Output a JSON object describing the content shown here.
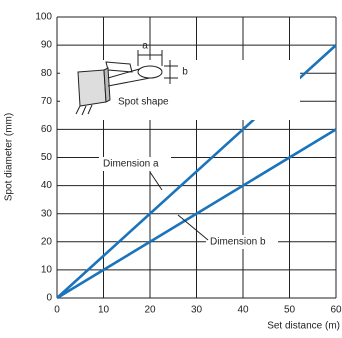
{
  "chart_data": {
    "type": "line",
    "x_label": "Set distance (m)",
    "y_label": "Spot diameter (mm)",
    "x": [
      0,
      60
    ],
    "series": [
      {
        "name": "Dimension a",
        "color": "#1b74bb",
        "values": [
          0,
          90
        ]
      },
      {
        "name": "Dimension b",
        "color": "#1b74bb",
        "values": [
          0,
          60
        ]
      }
    ],
    "xlim": [
      0,
      60
    ],
    "xticks": [
      0,
      10,
      20,
      30,
      40,
      50,
      60
    ],
    "ylim": [
      0,
      100
    ],
    "yticks": [
      0,
      10,
      20,
      30,
      40,
      50,
      60,
      70,
      80,
      90,
      100
    ],
    "grid": true,
    "annotations": [
      "a",
      "b",
      "Spot shape"
    ]
  }
}
